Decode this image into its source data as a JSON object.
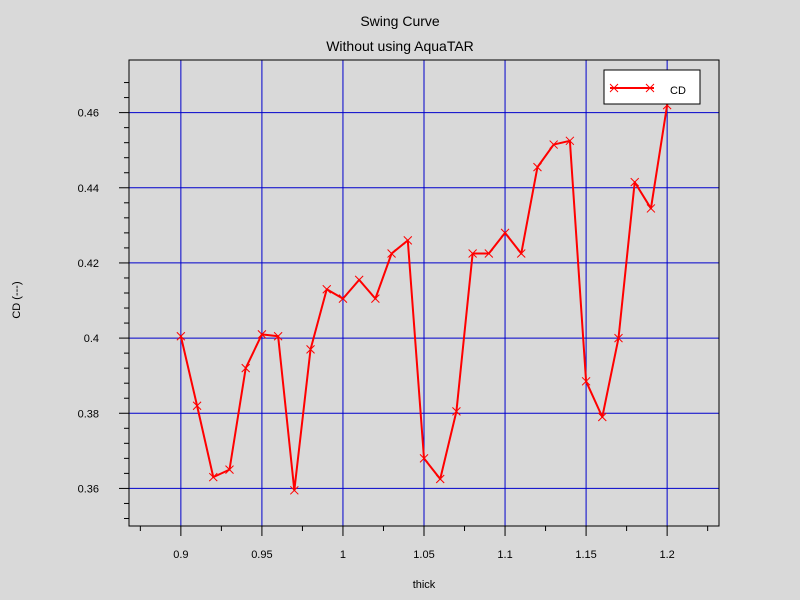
{
  "chart_data": {
    "type": "line",
    "title": "Swing Curve",
    "subtitle": "Without using AquaTAR",
    "xlabel": "thick",
    "ylabel": "CD (---)",
    "xlim": [
      0.868,
      1.232
    ],
    "ylim": [
      0.35,
      0.474
    ],
    "x_ticks": [
      0.9,
      0.95,
      1,
      1.05,
      1.1,
      1.15,
      1.2
    ],
    "x_tick_labels": [
      "0.9",
      "0.95",
      "1",
      "1.05",
      "1.1",
      "1.15",
      "1.2"
    ],
    "y_ticks": [
      0.36,
      0.38,
      0.4,
      0.42,
      0.44,
      0.46
    ],
    "y_tick_labels": [
      "0.36",
      "0.38",
      "0.4",
      "0.42",
      "0.44",
      "0.46"
    ],
    "grid": true,
    "legend_position": "top-right",
    "series": [
      {
        "name": "CD",
        "color": "#ff0000",
        "marker": "x",
        "x": [
          0.9,
          0.91,
          0.92,
          0.93,
          0.94,
          0.95,
          0.96,
          0.97,
          0.98,
          0.99,
          1.0,
          1.01,
          1.02,
          1.03,
          1.04,
          1.05,
          1.06,
          1.07,
          1.08,
          1.09,
          1.1,
          1.11,
          1.12,
          1.13,
          1.14,
          1.15,
          1.16,
          1.17,
          1.18,
          1.19,
          1.2
        ],
        "y": [
          0.4005,
          0.382,
          0.363,
          0.365,
          0.392,
          0.401,
          0.4005,
          0.3595,
          0.397,
          0.413,
          0.4105,
          0.4155,
          0.4105,
          0.4225,
          0.426,
          0.368,
          0.3625,
          0.3805,
          0.4225,
          0.4225,
          0.428,
          0.4225,
          0.4455,
          0.4515,
          0.4525,
          0.3885,
          0.379,
          0.4,
          0.4415,
          0.4345,
          0.462
        ]
      }
    ]
  },
  "colors": {
    "background": "#d9d9d9",
    "plot_background": "#ffffff",
    "grid": "#0000cc",
    "series": "#ff0000"
  }
}
